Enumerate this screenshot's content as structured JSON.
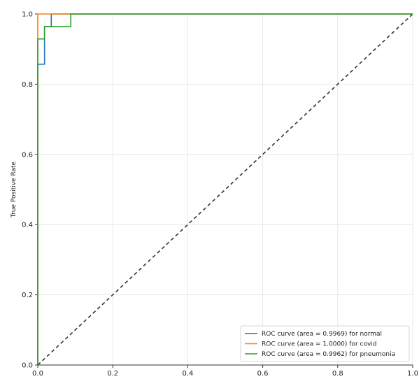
{
  "chart_data": {
    "type": "line",
    "title": "",
    "xlabel": "",
    "ylabel": "True Positive Rate",
    "xlim": [
      0.0,
      1.0
    ],
    "ylim": [
      0.0,
      1.0
    ],
    "grid": true,
    "xticks": [
      "0.0",
      "0.2",
      "0.4",
      "0.6",
      "0.8",
      "1.0"
    ],
    "yticks": [
      "0.0",
      "0.2",
      "0.4",
      "0.6",
      "0.8",
      "1.0"
    ],
    "legend_position": "bottom-right",
    "series": [
      {
        "name": "ROC curve (area = 0.9969) for normal",
        "color": "#1f77b4",
        "x": [
          0.0,
          0.0,
          0.018,
          0.018,
          0.036,
          0.036,
          1.0
        ],
        "y": [
          0.0,
          0.857,
          0.857,
          0.964,
          0.964,
          1.0,
          1.0
        ]
      },
      {
        "name": "ROC curve (area = 1.0000) for covid",
        "color": "#ff7f0e",
        "x": [
          0.0,
          0.0,
          1.0
        ],
        "y": [
          0.0,
          1.0,
          1.0
        ]
      },
      {
        "name": "ROC curve (area = 0.9962) for pneumonia",
        "color": "#2ca02c",
        "x": [
          0.0,
          0.0,
          0.018,
          0.018,
          0.088,
          0.088,
          1.0
        ],
        "y": [
          0.0,
          0.929,
          0.929,
          0.964,
          0.964,
          1.0,
          1.0
        ]
      }
    ],
    "reference_line": {
      "x": [
        0.0,
        1.0
      ],
      "y": [
        0.0,
        1.0
      ],
      "color": "#333333",
      "style": "dashed"
    }
  }
}
